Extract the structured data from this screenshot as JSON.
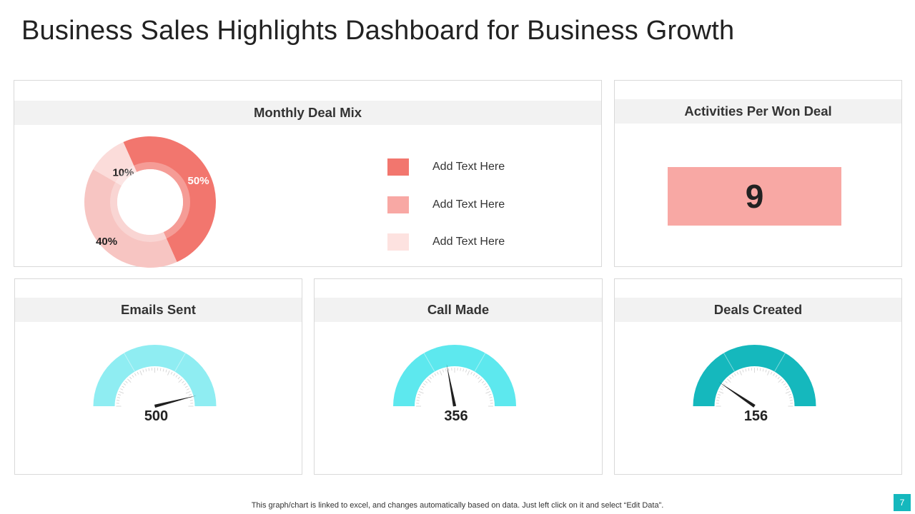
{
  "title": "Business Sales Highlights Dashboard for Business Growth",
  "colors": {
    "donut": [
      "#f2766e",
      "#f7c5c2",
      "#fbdcda"
    ],
    "legend": [
      "#f2766e",
      "#f8a8a4",
      "#fde2e0"
    ],
    "kpi_box": "#f8a8a4",
    "gauges": [
      "#8fedf2",
      "#5de8ee",
      "#15b8bd"
    ],
    "page_badge": "#15b8bd"
  },
  "chart_data": [
    {
      "type": "pie",
      "title": "Monthly Deal Mix",
      "categories": [
        "Add Text Here",
        "Add Text Here",
        "Add Text Here"
      ],
      "values": [
        50,
        40,
        10
      ],
      "labels": [
        "50%",
        "40%",
        "10%"
      ],
      "legend_position": "right"
    },
    {
      "type": "table",
      "title": "Activities Per Won Deal",
      "value": "9"
    },
    {
      "type": "gauge",
      "title": "Emails Sent",
      "value": 500,
      "value_label": "500",
      "needle_fraction": 0.92
    },
    {
      "type": "gauge",
      "title": "Call Made",
      "value": 356,
      "value_label": "356",
      "needle_fraction": 0.44
    },
    {
      "type": "gauge",
      "title": "Deals Created",
      "value": 156,
      "value_label": "156",
      "needle_fraction": 0.19
    }
  ],
  "footer": {
    "note": "This graph/chart is linked to excel,  and changes automatically based on data. Just left click on it and select “Edit Data”.",
    "page_number": "7"
  }
}
